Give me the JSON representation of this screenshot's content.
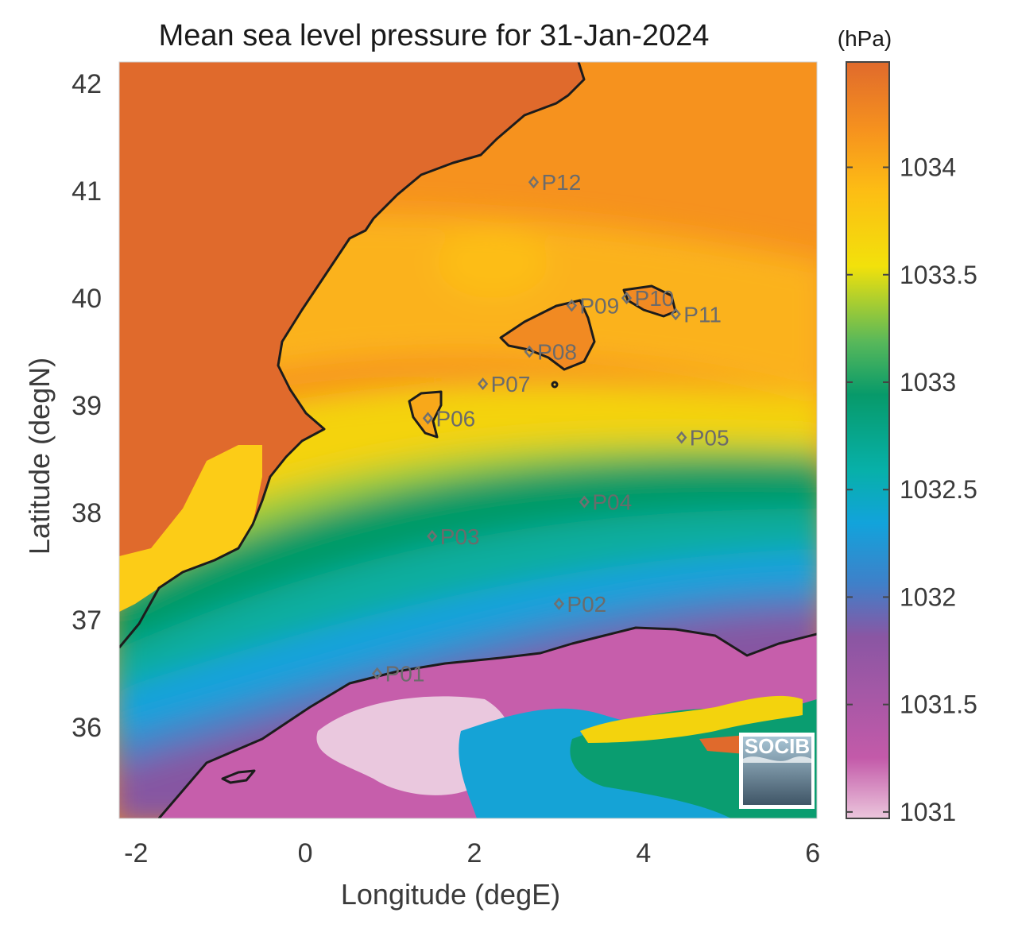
{
  "title": "Mean sea level pressure for 31-Jan-2024",
  "xaxis": {
    "label": "Longitude (degE)",
    "range": [
      -2.2,
      6.05
    ],
    "ticks": [
      "-2",
      "0",
      "2",
      "4",
      "6"
    ],
    "tick_values": [
      -2,
      0,
      2,
      4,
      6
    ]
  },
  "yaxis": {
    "label": "Latitude (degN)",
    "range": [
      35.15,
      42.2
    ],
    "ticks": [
      "36",
      "37",
      "38",
      "39",
      "40",
      "41",
      "42"
    ],
    "tick_values": [
      36,
      37,
      38,
      39,
      40,
      41,
      42
    ]
  },
  "colorbar": {
    "unit": "(hPa)",
    "range": [
      1030.97,
      1034.49
    ],
    "ticks": [
      "1031",
      "1031.5",
      "1032",
      "1032.5",
      "1033",
      "1033.5",
      "1034"
    ],
    "tick_values": [
      1031,
      1031.5,
      1032,
      1032.5,
      1033,
      1033.5,
      1034
    ],
    "colormap": [
      "#ebc6dc",
      "#c35aa9",
      "#8a56a3",
      "#3f80c9",
      "#12a3db",
      "#07b0a9",
      "#079a6a",
      "#58b85a",
      "#f2e10b",
      "#fdbd14",
      "#f6921e",
      "#e06a2c"
    ]
  },
  "stations": [
    {
      "id": "P01",
      "lon": 0.85,
      "lat": 36.5
    },
    {
      "id": "P02",
      "lon": 3.0,
      "lat": 37.15
    },
    {
      "id": "P03",
      "lon": 1.5,
      "lat": 37.78
    },
    {
      "id": "P04",
      "lon": 3.3,
      "lat": 38.1
    },
    {
      "id": "P05",
      "lon": 4.45,
      "lat": 38.7
    },
    {
      "id": "P06",
      "lon": 1.45,
      "lat": 38.88
    },
    {
      "id": "P07",
      "lon": 2.1,
      "lat": 39.2
    },
    {
      "id": "P08",
      "lon": 2.65,
      "lat": 39.5
    },
    {
      "id": "P09",
      "lon": 3.15,
      "lat": 39.93
    },
    {
      "id": "P10",
      "lon": 3.8,
      "lat": 40.0
    },
    {
      "id": "P11",
      "lon": 4.38,
      "lat": 39.85
    },
    {
      "id": "P12",
      "lon": 2.7,
      "lat": 41.08
    }
  ],
  "logo": {
    "text": "SOCIB"
  },
  "colors": {
    "land_high": "#e06a2c",
    "sea_high": "#f6921e",
    "coastline": "#1c1c1c",
    "station_marker": "#707070"
  }
}
